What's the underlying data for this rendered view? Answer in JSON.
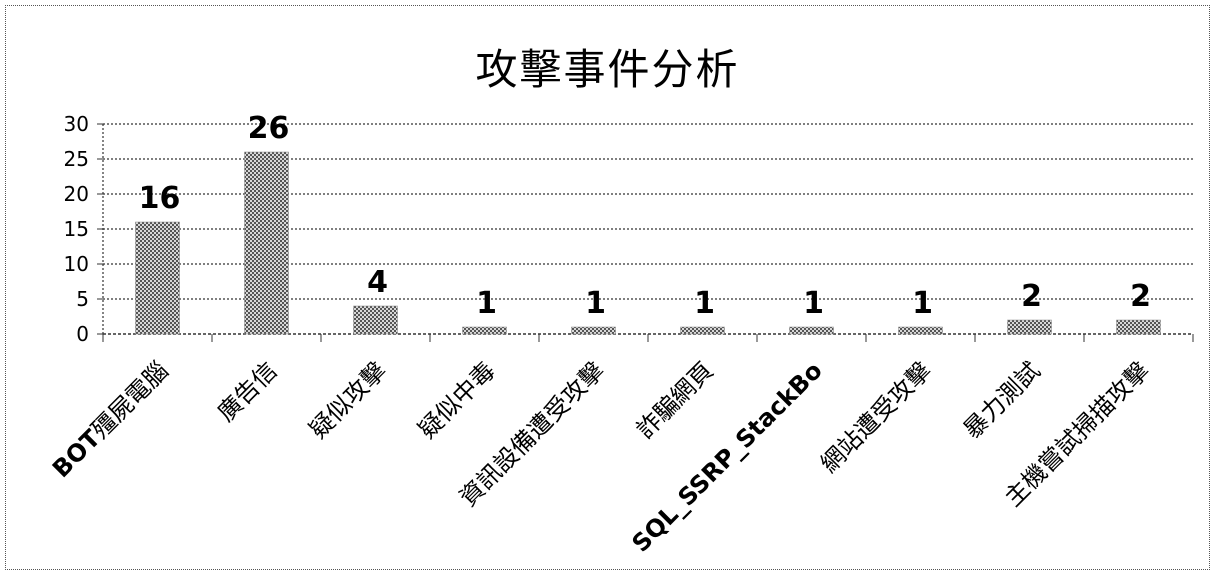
{
  "chart_data": {
    "type": "bar",
    "title": "攻擊事件分析",
    "xlabel": "",
    "ylabel": "",
    "ylim": [
      0,
      30
    ],
    "yticks": [
      0,
      5,
      10,
      15,
      20,
      25,
      30
    ],
    "grid": true,
    "categories": [
      "BOT殭屍電腦",
      "廣告信",
      "疑似攻擊",
      "疑似中毒",
      "資訊設備遭受攻擊",
      "詐騙網頁",
      "SQL_SSRP_StackBo",
      "網站遭受攻擊",
      "暴力測試",
      "主機嘗試掃描攻擊"
    ],
    "values": [
      16,
      26,
      4,
      1,
      1,
      1,
      1,
      1,
      2,
      2
    ],
    "data_labels": [
      "16",
      "26",
      "4",
      "1",
      "1",
      "1",
      "1",
      "1",
      "2",
      "2"
    ],
    "bar_color": "#9a9a9a"
  }
}
